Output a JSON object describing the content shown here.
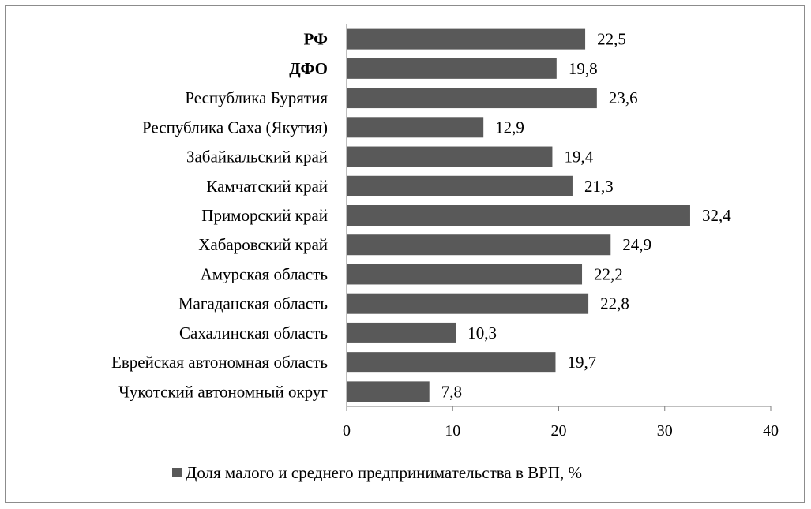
{
  "chart_data": {
    "type": "bar",
    "orientation": "horizontal",
    "categories": [
      "РФ",
      "ДФО",
      "Республика Бурятия",
      "Республика Саха (Якутия)",
      "Забайкальский край",
      "Камчатский край",
      "Приморский край",
      "Хабаровский край",
      "Амурская область",
      "Магаданская область",
      "Сахалинская область",
      "Еврейская автономная область",
      "Чукотский автономный округ"
    ],
    "bold_categories": [
      "РФ",
      "ДФО"
    ],
    "series": [
      {
        "name": "Доля малого и среднего предпринимательства в ВРП, %",
        "values": [
          22.5,
          19.8,
          23.6,
          12.9,
          19.4,
          21.3,
          32.4,
          24.9,
          22.2,
          22.8,
          10.3,
          19.7,
          7.8
        ],
        "labels": [
          "22,5",
          "19,8",
          "23,6",
          "12,9",
          "19,4",
          "21,3",
          "32,4",
          "24,9",
          "22,2",
          "22,8",
          "10,3",
          "19,7",
          "7,8"
        ]
      }
    ],
    "xlim": [
      0,
      40
    ],
    "xticks": [
      0,
      10,
      20,
      30,
      40
    ],
    "grid": false,
    "legend_position": "bottom",
    "bar_color": "#595959"
  }
}
